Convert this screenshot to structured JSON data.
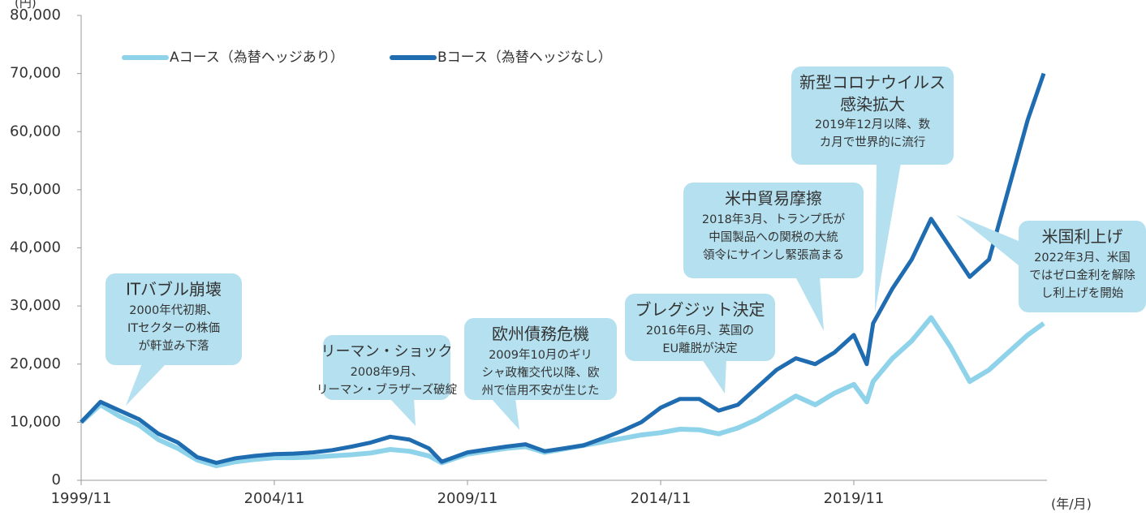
{
  "chart_data": {
    "type": "line",
    "y_label": "(円)",
    "x_label": "(年/月)",
    "x": [
      "1999/11",
      "2000/05",
      "2000/11",
      "2001/05",
      "2001/11",
      "2002/05",
      "2002/11",
      "2003/05",
      "2003/11",
      "2004/05",
      "2004/11",
      "2005/05",
      "2005/11",
      "2006/05",
      "2006/11",
      "2007/05",
      "2007/11",
      "2008/05",
      "2008/11",
      "2009/03",
      "2009/11",
      "2010/05",
      "2010/11",
      "2011/05",
      "2011/11",
      "2012/05",
      "2012/11",
      "2013/05",
      "2013/11",
      "2014/05",
      "2014/11",
      "2015/05",
      "2015/11",
      "2016/05",
      "2016/11",
      "2017/05",
      "2017/11",
      "2018/05",
      "2018/11",
      "2019/05",
      "2019/11",
      "2020/03",
      "2020/05",
      "2020/11",
      "2021/05",
      "2021/11",
      "2022/05",
      "2022/11",
      "2023/05",
      "2023/11",
      "2024/05",
      "2024/10"
    ],
    "series": [
      {
        "name": "Aコース（為替ヘッジあり）",
        "color": "#8fd3ea",
        "values": [
          10000,
          13000,
          11000,
          9500,
          7000,
          5500,
          3500,
          2500,
          3200,
          3600,
          3900,
          3900,
          4000,
          4200,
          4400,
          4700,
          5300,
          5000,
          4200,
          3000,
          4500,
          5000,
          5500,
          5800,
          4800,
          5400,
          6000,
          6600,
          7200,
          7800,
          8200,
          8800,
          8700,
          8000,
          9000,
          10500,
          12500,
          14500,
          13000,
          15000,
          16500,
          13500,
          17000,
          21000,
          24000,
          28000,
          23000,
          17000,
          19000,
          22000,
          25000,
          27000
        ]
      },
      {
        "name": "Bコース（為替ヘッジなし）",
        "color": "#1f6cb0",
        "values": [
          10000,
          13500,
          12000,
          10500,
          8000,
          6500,
          4000,
          3000,
          3800,
          4200,
          4500,
          4600,
          4800,
          5200,
          5800,
          6500,
          7500,
          7000,
          5500,
          3200,
          4800,
          5300,
          5800,
          6200,
          5000,
          5500,
          6000,
          7200,
          8500,
          10000,
          12500,
          14000,
          14000,
          12000,
          13000,
          16000,
          19000,
          21000,
          20000,
          22000,
          25000,
          20000,
          27000,
          33000,
          38000,
          45000,
          40000,
          35000,
          38000,
          50000,
          62000,
          70000
        ]
      }
    ],
    "xlim": [
      "1999/11",
      "2024/11"
    ],
    "xticks": [
      "1999/11",
      "2004/11",
      "2009/11",
      "2014/11",
      "2019/11"
    ],
    "ylim": [
      0,
      80000
    ],
    "yticks": [
      0,
      {
        "value": 10000,
        "label": "10,000"
      },
      {
        "value": 20000,
        "label": "20,000"
      },
      {
        "value": 30000,
        "label": "30,000"
      },
      {
        "value": 40000,
        "label": "40,000"
      },
      {
        "value": 50000,
        "label": "50,000"
      },
      {
        "value": 60000,
        "label": "60,000"
      },
      {
        "value": 70000,
        "label": "70,000"
      },
      {
        "value": 80000,
        "label": "80,000"
      }
    ],
    "annotations": [
      {
        "title": "ITバブル崩壊",
        "lines": [
          "2000年代初期、",
          "ITセクターの株価",
          "が軒並み下落"
        ]
      },
      {
        "title": "リーマン・ショック",
        "lines": [
          "2008年9月、",
          "リーマン・ブラザーズ破綻"
        ]
      },
      {
        "title": "欧州債務危機",
        "lines": [
          "2009年10月のギリ",
          "シャ政権交代以降、欧",
          "州で信用不安が生じた"
        ]
      },
      {
        "title": "ブレグジット決定",
        "lines": [
          "2016年6月、英国の",
          "EU離脱が決定"
        ]
      },
      {
        "title": "米中貿易摩擦",
        "lines": [
          "2018年3月、トランプ氏が",
          "中国製品への関税の大統",
          "領令にサインし緊張高まる"
        ]
      },
      {
        "title": "新型コロナウイルス",
        "lines": [
          "感染拡大",
          "2019年12月以降、数",
          "カ月で世界的に流行"
        ]
      },
      {
        "title": "米国利上げ",
        "lines": [
          "2022年3月、米国",
          "ではゼロ金利を解除",
          "し利上げを開始"
        ]
      }
    ]
  }
}
